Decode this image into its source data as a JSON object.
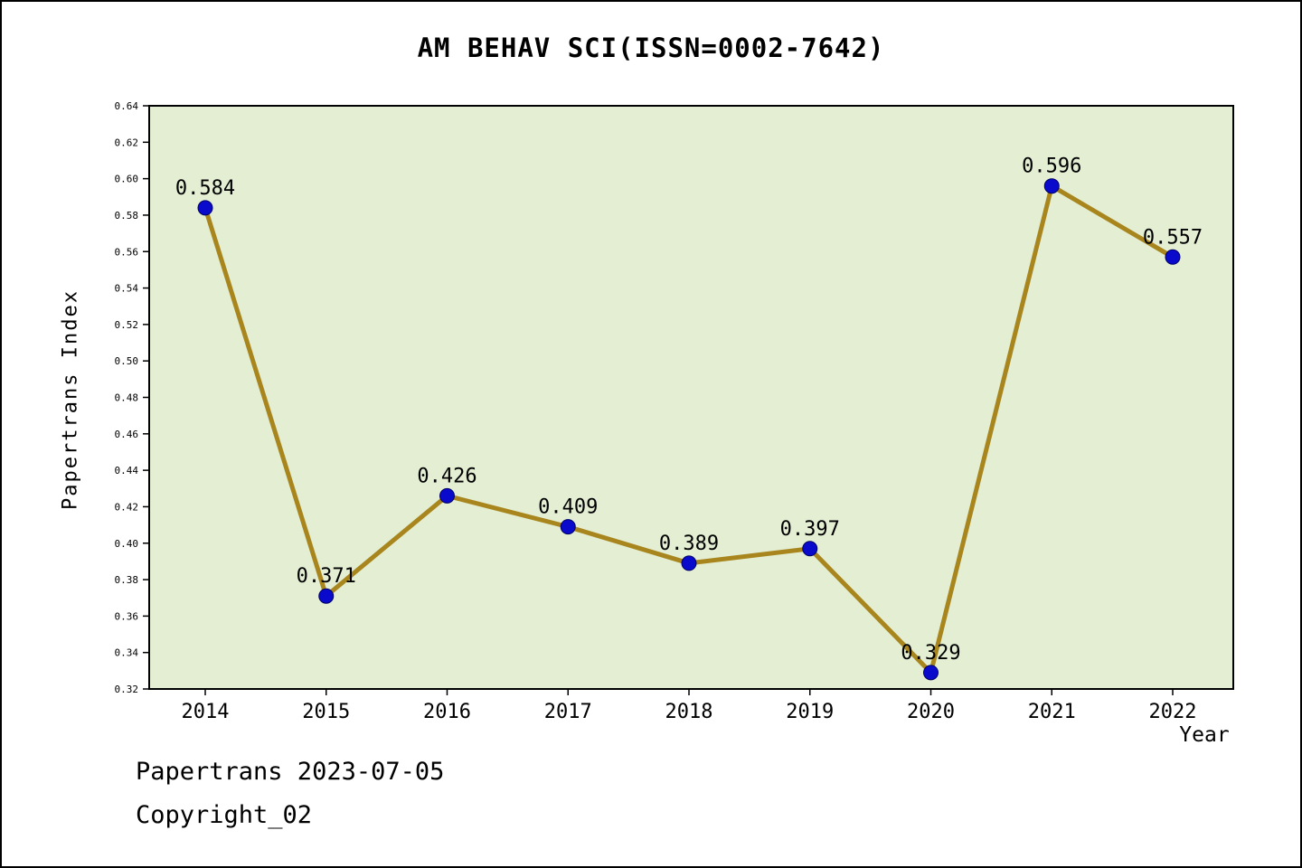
{
  "chart_data": {
    "type": "line",
    "title": "AM BEHAV SCI(ISSN=0002-7642)",
    "xlabel": "Year",
    "ylabel": "Papertrans Index",
    "categories": [
      "2014",
      "2015",
      "2016",
      "2017",
      "2018",
      "2019",
      "2020",
      "2021",
      "2022"
    ],
    "series": [
      {
        "name": "Papertrans Index",
        "values": [
          0.584,
          0.371,
          0.426,
          0.409,
          0.389,
          0.397,
          0.329,
          0.596,
          0.557
        ]
      }
    ],
    "point_labels": [
      "0.584",
      "0.371",
      "0.426",
      "0.409",
      "0.389",
      "0.397",
      "0.329",
      "0.596",
      "0.557"
    ],
    "ylim": [
      0.32,
      0.64
    ],
    "ytick_step": 0.02,
    "grid": false,
    "legend_position": "none",
    "colors": {
      "plot_background": "#e3eed3",
      "line": "#a8861d",
      "marker_fill": "#0a0acc",
      "marker_edge": "#000066",
      "axis": "#000000",
      "text": "#000000"
    }
  },
  "footer": {
    "line1": "Papertrans 2023-07-05",
    "line2": "Copyright_02"
  }
}
